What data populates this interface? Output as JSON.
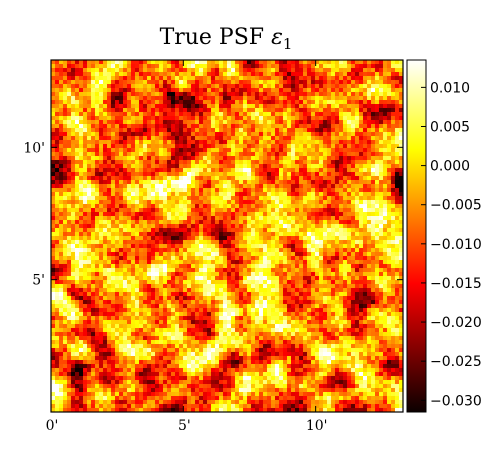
{
  "chart_data": {
    "type": "heatmap",
    "title_main": "True PSF ",
    "title_symbol": "ε",
    "title_subscript": "1",
    "x_ticks": [
      {
        "value": 0,
        "label": "0'"
      },
      {
        "value": 5,
        "label": "5'"
      },
      {
        "value": 10,
        "label": "10'"
      }
    ],
    "y_ticks": [
      {
        "value": 5,
        "label": "5'"
      },
      {
        "value": 10,
        "label": "10'"
      }
    ],
    "xlim": [
      0,
      13.3
    ],
    "ylim": [
      0,
      13.3
    ],
    "grid": false,
    "colormap": "hot",
    "colorbar": {
      "range": [
        -0.0315,
        0.0135
      ],
      "ticks": [
        {
          "value": 0.01,
          "label": "0.010"
        },
        {
          "value": 0.005,
          "label": "0.005"
        },
        {
          "value": 0.0,
          "label": "0.000"
        },
        {
          "value": -0.005,
          "label": "−0.005"
        },
        {
          "value": -0.01,
          "label": "−0.010"
        },
        {
          "value": -0.015,
          "label": "−0.015"
        },
        {
          "value": -0.02,
          "label": "−0.020"
        },
        {
          "value": -0.025,
          "label": "−0.025"
        },
        {
          "value": -0.03,
          "label": "−0.030"
        }
      ]
    },
    "field": {
      "grid_size": 88,
      "seed": 7,
      "mean": -0.006,
      "spread": 0.0085
    },
    "colors": {
      "stop_black": "#0b0000",
      "stop_red": "#ff0000",
      "stop_yellow": "#ffff00",
      "stop_white": "#ffffff"
    }
  }
}
